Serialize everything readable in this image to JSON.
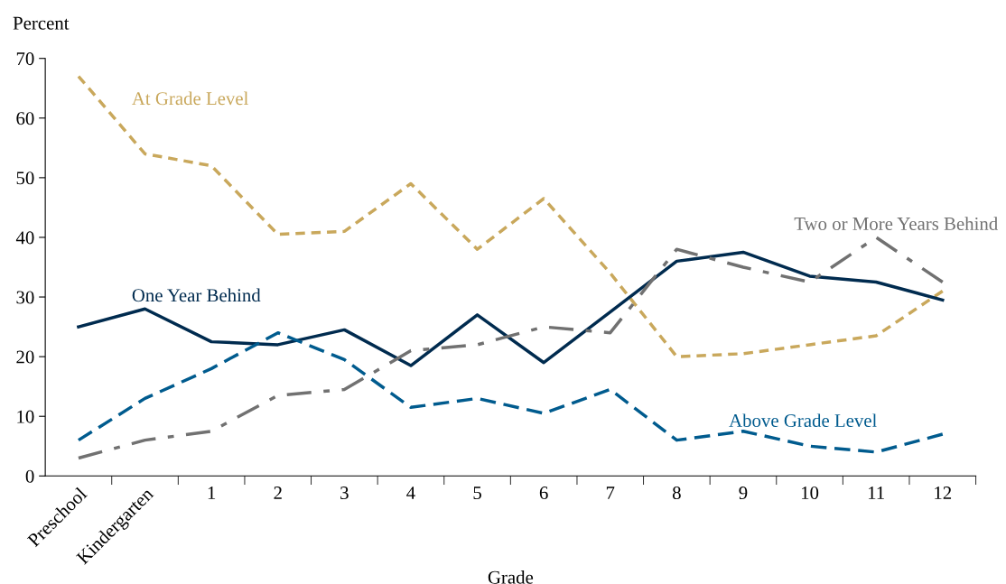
{
  "chart_data": {
    "type": "line",
    "ylabel": "Percent",
    "xlabel": "Grade",
    "categories": [
      "Preschool",
      "Kindergarten",
      "1",
      "2",
      "3",
      "4",
      "5",
      "6",
      "7",
      "8",
      "9",
      "10",
      "11",
      "12"
    ],
    "ylim": [
      0,
      70
    ],
    "yticks": [
      0,
      10,
      20,
      30,
      40,
      50,
      60,
      70
    ],
    "grid": false,
    "legend": false,
    "marker": "none",
    "series": [
      {
        "name": "At Grade Level",
        "color": "#c9a85c",
        "line_style": "dotted",
        "values": [
          67,
          54,
          52,
          40.5,
          41,
          49,
          38,
          46.5,
          34,
          20,
          20.5,
          22,
          23.5,
          31
        ]
      },
      {
        "name": "One Year Behind",
        "color": "#002b4f",
        "line_style": "solid",
        "values": [
          25,
          28,
          22.5,
          22,
          24.5,
          18.5,
          27,
          19,
          27.5,
          36,
          37.5,
          33.5,
          32.5,
          29.5
        ]
      },
      {
        "name": "Above Grade Level",
        "color": "#005b8e",
        "line_style": "dashed",
        "values": [
          6,
          13,
          18,
          24,
          19.5,
          11.5,
          13,
          10.5,
          14.5,
          6,
          7.5,
          5,
          4,
          7
        ]
      },
      {
        "name": "Two or More Years Behind",
        "color": "#717171",
        "line_style": "dashdot",
        "values": [
          3,
          6,
          7.5,
          13.5,
          14.5,
          21,
          22,
          25,
          24,
          38,
          35,
          32.5,
          40,
          32.5
        ]
      }
    ]
  }
}
